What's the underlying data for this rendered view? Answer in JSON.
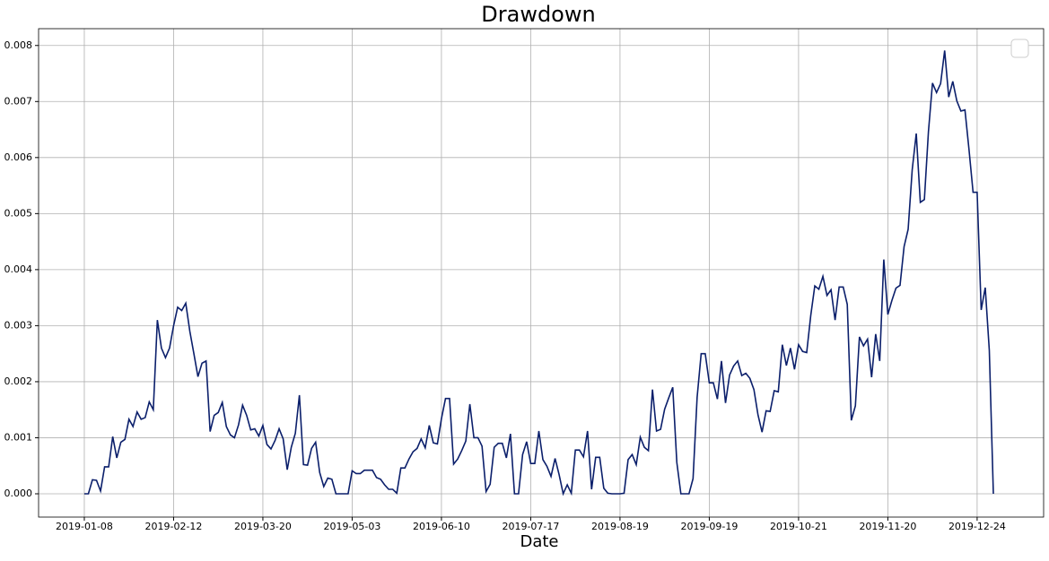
{
  "chart_data": {
    "type": "line",
    "title": "Drawdown",
    "x_label": "Date",
    "categories": [
      "2019-01-08",
      null,
      null,
      null,
      null,
      null,
      null,
      null,
      null,
      null,
      null,
      null,
      null,
      null,
      null,
      null,
      null,
      null,
      null,
      null,
      null,
      null,
      "2019-02-12",
      null,
      null,
      null,
      null,
      null,
      null,
      null,
      null,
      null,
      null,
      null,
      null,
      null,
      null,
      null,
      null,
      null,
      null,
      null,
      null,
      null,
      "2019-03-20",
      null,
      null,
      null,
      null,
      null,
      null,
      null,
      null,
      null,
      null,
      null,
      null,
      null,
      null,
      null,
      null,
      null,
      null,
      null,
      null,
      null,
      "2019-05-03",
      null,
      null,
      null,
      null,
      null,
      null,
      null,
      null,
      null,
      null,
      null,
      null,
      null,
      null,
      null,
      null,
      null,
      null,
      null,
      null,
      null,
      "2019-06-10",
      null,
      null,
      null,
      null,
      null,
      null,
      null,
      null,
      null,
      null,
      null,
      null,
      null,
      null,
      null,
      null,
      null,
      null,
      null,
      null,
      null,
      "2019-07-17",
      null,
      null,
      null,
      null,
      null,
      null,
      null,
      null,
      null,
      null,
      null,
      null,
      null,
      null,
      null,
      null,
      null,
      null,
      null,
      null,
      null,
      "2019-08-19",
      null,
      null,
      null,
      null,
      null,
      null,
      null,
      null,
      null,
      null,
      null,
      null,
      null,
      null,
      null,
      null,
      null,
      null,
      null,
      null,
      null,
      "2019-09-19",
      null,
      null,
      null,
      null,
      null,
      null,
      null,
      null,
      null,
      null,
      null,
      null,
      null,
      null,
      null,
      null,
      null,
      null,
      null,
      null,
      null,
      "2019-10-21",
      null,
      null,
      null,
      null,
      null,
      null,
      null,
      null,
      null,
      null,
      null,
      null,
      null,
      null,
      null,
      null,
      null,
      null,
      null,
      null,
      null,
      "2019-11-20",
      null,
      null,
      null,
      null,
      null,
      null,
      null,
      null,
      null,
      null,
      null,
      null,
      null,
      null,
      null,
      null,
      null,
      null,
      null,
      null,
      null,
      "2019-12-24",
      null,
      null,
      null,
      null
    ],
    "series": [
      {
        "color": "#0b1f6b",
        "values": [
          0,
          0,
          0.00025,
          0.00024,
          5e-05,
          0.00048,
          0.00048,
          0.00102,
          0.00064,
          0.00092,
          0.00097,
          0.00133,
          0.0012,
          0.00146,
          0.00133,
          0.00136,
          0.00164,
          0.0015,
          0.0031,
          0.0026,
          0.00243,
          0.0026,
          0.003,
          0.00333,
          0.00327,
          0.0034,
          0.0029,
          0.0025,
          0.00209,
          0.00233,
          0.00237,
          0.00111,
          0.0014,
          0.00145,
          0.00163,
          0.0012,
          0.00105,
          0.001,
          0.00123,
          0.00158,
          0.0014,
          0.00114,
          0.00116,
          0.00103,
          0.00122,
          0.00088,
          0.0008,
          0.00095,
          0.00116,
          0.00098,
          0.00043,
          0.00083,
          0.00108,
          0.00176,
          0.00052,
          0.00051,
          0.00081,
          0.00092,
          0.00038,
          0.00013,
          0.00028,
          0.00026,
          0,
          0,
          0,
          0,
          0.00041,
          0.00036,
          0.00036,
          0.00042,
          0.00042,
          0.00042,
          0.00029,
          0.00026,
          0.00016,
          8e-05,
          8e-05,
          1e-05,
          0.00046,
          0.00046,
          0.00062,
          0.00075,
          0.00081,
          0.00098,
          0.00082,
          0.00122,
          0.00091,
          0.00089,
          0.00134,
          0.0017,
          0.0017,
          0.00053,
          0.00062,
          0.00077,
          0.00094,
          0.0016,
          0.001,
          0.001,
          0.00085,
          4e-05,
          0.00017,
          0.00083,
          0.0009,
          0.0009,
          0.00064,
          0.00107,
          0,
          0,
          0.0007,
          0.00093,
          0.00054,
          0.00054,
          0.00112,
          0.00061,
          0.00049,
          0.00031,
          0.00063,
          0.00034,
          0,
          0.00016,
          1e-05,
          0.00078,
          0.00078,
          0.00066,
          0.00112,
          8e-05,
          0.00065,
          0.00065,
          0.0001,
          1e-05,
          0,
          0,
          0,
          1e-05,
          0.00061,
          0.0007,
          0.00052,
          0.00101,
          0.00083,
          0.00077,
          0.00186,
          0.00112,
          0.00115,
          0.00151,
          0.00171,
          0.0019,
          0.00056,
          0,
          0,
          0,
          0.00027,
          0.00172,
          0.0025,
          0.0025,
          0.00198,
          0.00198,
          0.00169,
          0.00237,
          0.00162,
          0.00212,
          0.00228,
          0.00237,
          0.00211,
          0.00215,
          0.00206,
          0.00186,
          0.00141,
          0.0011,
          0.00148,
          0.00147,
          0.00184,
          0.00182,
          0.00266,
          0.00229,
          0.0026,
          0.00222,
          0.00266,
          0.00254,
          0.00252,
          0.00318,
          0.00371,
          0.00365,
          0.00388,
          0.00354,
          0.00364,
          0.0031,
          0.00369,
          0.00369,
          0.00338,
          0.00131,
          0.00157,
          0.0028,
          0.00264,
          0.00276,
          0.00208,
          0.00285,
          0.00237,
          0.00418,
          0.0032,
          0.00345,
          0.00367,
          0.00372,
          0.00441,
          0.00472,
          0.00578,
          0.00643,
          0.0052,
          0.00525,
          0.00646,
          0.00733,
          0.00716,
          0.00732,
          0.00791,
          0.00708,
          0.00736,
          0.00701,
          0.00683,
          0.00685,
          0.00614,
          0.00538,
          0.00538,
          0.00328,
          0.00368,
          0.00256,
          0
        ]
      }
    ],
    "ylim": [
      -0.000416,
      0.0083
    ],
    "yticks": [
      {
        "value": 0,
        "label": "0.000"
      },
      {
        "value": 0.001,
        "label": "0.001"
      },
      {
        "value": 0.002,
        "label": "0.002"
      },
      {
        "value": 0.003,
        "label": "0.003"
      },
      {
        "value": 0.004,
        "label": "0.004"
      },
      {
        "value": 0.005,
        "label": "0.005"
      },
      {
        "value": 0.006,
        "label": "0.006"
      },
      {
        "value": 0.007,
        "label": "0.007"
      },
      {
        "value": 0.008,
        "label": "0.008"
      }
    ],
    "grid": true,
    "legend": "upper right"
  }
}
